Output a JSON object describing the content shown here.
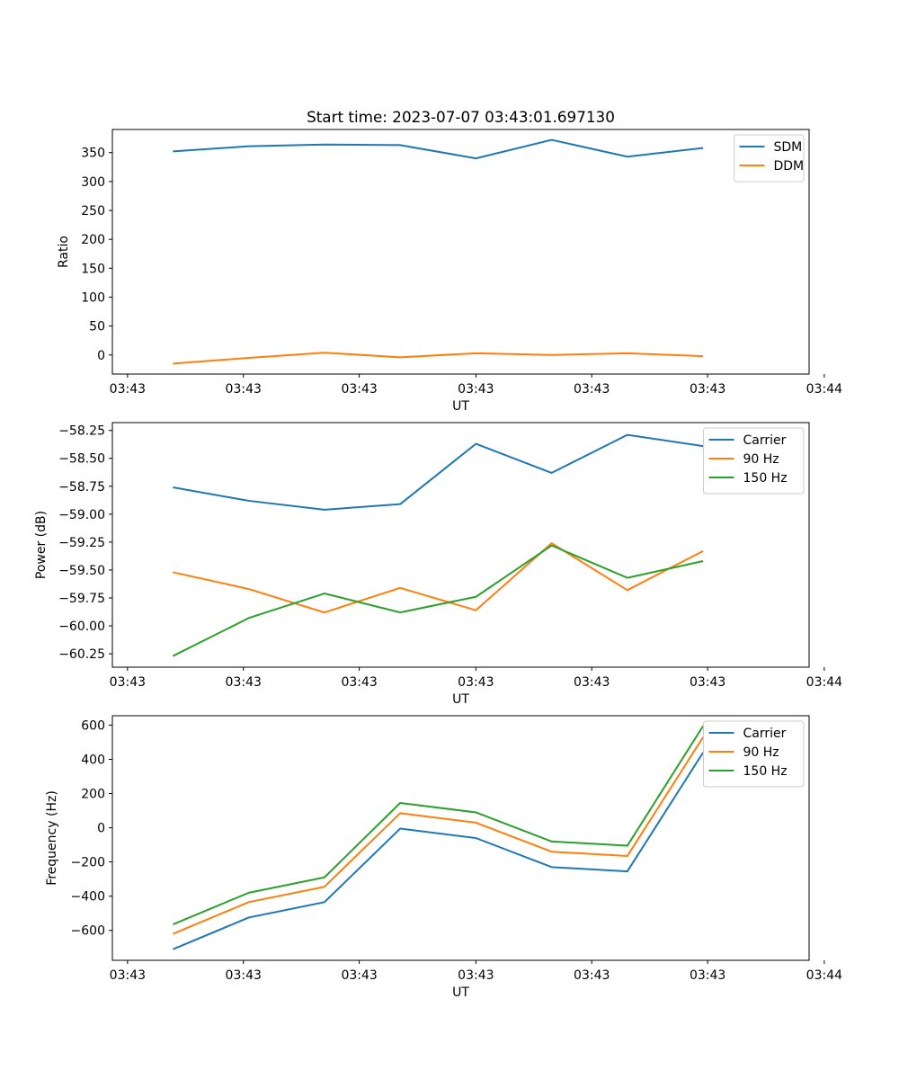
{
  "title": "Start time: 2023-07-07 03:43:01.697130",
  "chart_data": [
    {
      "type": "line",
      "title": "Start time: 2023-07-07 03:43:01.697130",
      "xlabel": "UT",
      "ylabel": "Ratio",
      "x": [
        1,
        2,
        3,
        4,
        5,
        6,
        7,
        8
      ],
      "xlim": [
        0.2,
        9.4
      ],
      "x_ticks": [
        0.4,
        1.93,
        3.46,
        5.0,
        6.53,
        8.06,
        9.6
      ],
      "x_tick_labels": [
        "03:43",
        "03:43",
        "03:43",
        "03:43",
        "03:43",
        "03:43",
        "03:44"
      ],
      "ylim": [
        -33,
        390
      ],
      "y_ticks": [
        0,
        50,
        100,
        150,
        200,
        250,
        300,
        350
      ],
      "y_tick_labels": [
        "0",
        "50",
        "100",
        "150",
        "200",
        "250",
        "300",
        "350"
      ],
      "legend_position": "top-right",
      "series": [
        {
          "name": "SDM",
          "color": "#1f77b4",
          "values": [
            352,
            361,
            364,
            363,
            340,
            372,
            343,
            358
          ]
        },
        {
          "name": "DDM",
          "color": "#ff7f0e",
          "values": [
            -15,
            -5,
            4,
            -4,
            3,
            0,
            3,
            -2
          ]
        }
      ]
    },
    {
      "type": "line",
      "title": "",
      "xlabel": "UT",
      "ylabel": "Power (dB)",
      "x": [
        1,
        2,
        3,
        4,
        5,
        6,
        7,
        8
      ],
      "xlim": [
        0.2,
        9.4
      ],
      "x_ticks": [
        0.4,
        1.93,
        3.46,
        5.0,
        6.53,
        8.06,
        9.6
      ],
      "x_tick_labels": [
        "03:43",
        "03:43",
        "03:43",
        "03:43",
        "03:43",
        "03:43",
        "03:44"
      ],
      "ylim": [
        -60.37,
        -58.18
      ],
      "y_ticks": [
        -58.25,
        -58.5,
        -58.75,
        -59.0,
        -59.25,
        -59.5,
        -59.75,
        -60.0,
        -60.25
      ],
      "y_tick_labels": [
        "−58.25",
        "−58.50",
        "−58.75",
        "−59.00",
        "−59.25",
        "−59.50",
        "−59.75",
        "−60.00",
        "−60.25"
      ],
      "legend_position": "top-right",
      "series": [
        {
          "name": "Carrier",
          "color": "#1f77b4",
          "values": [
            -58.76,
            -58.88,
            -58.96,
            -58.91,
            -58.37,
            -58.63,
            -58.29,
            -58.39
          ]
        },
        {
          "name": "90 Hz",
          "color": "#ff7f0e",
          "values": [
            -59.52,
            -59.67,
            -59.88,
            -59.66,
            -59.86,
            -59.26,
            -59.68,
            -59.33
          ]
        },
        {
          "name": "150 Hz",
          "color": "#2ca02c",
          "values": [
            -60.27,
            -59.93,
            -59.71,
            -59.88,
            -59.74,
            -59.28,
            -59.57,
            -59.42
          ]
        }
      ]
    },
    {
      "type": "line",
      "title": "",
      "xlabel": "UT",
      "ylabel": "Frequency (Hz)",
      "x": [
        1,
        2,
        3,
        4,
        5,
        6,
        7,
        8
      ],
      "xlim": [
        0.2,
        9.4
      ],
      "x_ticks": [
        0.4,
        1.93,
        3.46,
        5.0,
        6.53,
        8.06,
        9.6
      ],
      "x_tick_labels": [
        "03:43",
        "03:43",
        "03:43",
        "03:43",
        "03:43",
        "03:43",
        "03:44"
      ],
      "ylim": [
        -775,
        655
      ],
      "y_ticks": [
        600,
        400,
        200,
        0,
        -200,
        -400,
        -600
      ],
      "y_tick_labels": [
        "600",
        "400",
        "200",
        "0",
        "−200",
        "−400",
        "−600"
      ],
      "legend_position": "top-right",
      "series": [
        {
          "name": "Carrier",
          "color": "#1f77b4",
          "values": [
            -710,
            -525,
            -435,
            -5,
            -60,
            -230,
            -255,
            440
          ]
        },
        {
          "name": "90 Hz",
          "color": "#ff7f0e",
          "values": [
            -620,
            -435,
            -345,
            85,
            30,
            -140,
            -165,
            530
          ]
        },
        {
          "name": "150 Hz",
          "color": "#2ca02c",
          "values": [
            -565,
            -380,
            -290,
            145,
            90,
            -80,
            -105,
            595
          ]
        }
      ]
    }
  ]
}
